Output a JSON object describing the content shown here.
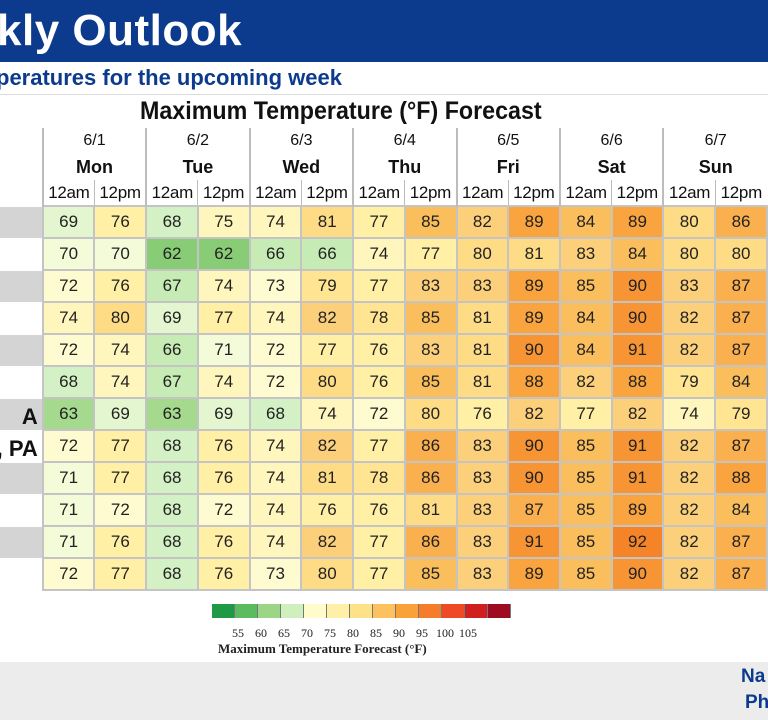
{
  "header": {
    "title": "kly Outlook",
    "subtitle": "peratures for the upcoming week",
    "banner_color": "#0c3b8d"
  },
  "chart_data": {
    "type": "table",
    "title": "Maximum Temperature (°F) Forecast",
    "days": [
      {
        "date": "6/1",
        "day": "Mon"
      },
      {
        "date": "6/2",
        "day": "Tue"
      },
      {
        "date": "6/3",
        "day": "Wed"
      },
      {
        "date": "6/4",
        "day": "Thu"
      },
      {
        "date": "6/5",
        "day": "Fri"
      },
      {
        "date": "6/6",
        "day": "Sat"
      },
      {
        "date": "6/7",
        "day": "Sun"
      }
    ],
    "times": [
      "12am",
      "12pm"
    ],
    "rows": [
      {
        "label": "",
        "values": [
          69,
          76,
          68,
          75,
          74,
          81,
          77,
          85,
          82,
          89,
          84,
          89,
          80,
          86
        ]
      },
      {
        "label": "",
        "values": [
          70,
          70,
          62,
          62,
          66,
          66,
          74,
          77,
          80,
          81,
          83,
          84,
          80,
          80
        ]
      },
      {
        "label": "",
        "values": [
          72,
          76,
          67,
          74,
          73,
          79,
          77,
          83,
          83,
          89,
          85,
          90,
          83,
          87
        ]
      },
      {
        "label": "",
        "values": [
          74,
          80,
          69,
          77,
          74,
          82,
          78,
          85,
          81,
          89,
          84,
          90,
          82,
          87
        ]
      },
      {
        "label": "",
        "values": [
          72,
          74,
          66,
          71,
          72,
          77,
          76,
          83,
          81,
          90,
          84,
          91,
          82,
          87
        ]
      },
      {
        "label": "",
        "values": [
          68,
          74,
          67,
          74,
          72,
          80,
          76,
          85,
          81,
          88,
          82,
          88,
          79,
          84
        ]
      },
      {
        "label": "A",
        "values": [
          63,
          69,
          63,
          69,
          68,
          74,
          72,
          80,
          76,
          82,
          77,
          82,
          74,
          79
        ]
      },
      {
        "label": ", PA",
        "values": [
          72,
          77,
          68,
          76,
          74,
          82,
          77,
          86,
          83,
          90,
          85,
          91,
          82,
          87
        ]
      },
      {
        "label": "",
        "values": [
          71,
          77,
          68,
          76,
          74,
          81,
          78,
          86,
          83,
          90,
          85,
          91,
          82,
          88
        ]
      },
      {
        "label": "",
        "values": [
          71,
          72,
          68,
          72,
          74,
          76,
          76,
          81,
          83,
          87,
          85,
          89,
          82,
          84
        ]
      },
      {
        "label": "",
        "values": [
          71,
          76,
          68,
          76,
          74,
          82,
          77,
          86,
          83,
          91,
          85,
          92,
          82,
          87
        ]
      },
      {
        "label": "",
        "values": [
          72,
          77,
          68,
          76,
          73,
          80,
          77,
          85,
          83,
          89,
          85,
          90,
          82,
          87
        ]
      }
    ],
    "legend": {
      "label": "Maximum Temperature Forecast (°F)",
      "ticks": [
        "55",
        "60",
        "65",
        "70",
        "75",
        "80",
        "85",
        "90",
        "95",
        "100",
        "105"
      ],
      "colors": [
        "#1e9a46",
        "#5dbb5f",
        "#9bd686",
        "#cff0bc",
        "#fffccc",
        "#fff0a8",
        "#fde28a",
        "#fdc25e",
        "#f9a239",
        "#f57c2a",
        "#ee4a25",
        "#d01f1f",
        "#9e0c22"
      ]
    }
  },
  "footer": {
    "line1": "Na",
    "line2": "Ph"
  }
}
